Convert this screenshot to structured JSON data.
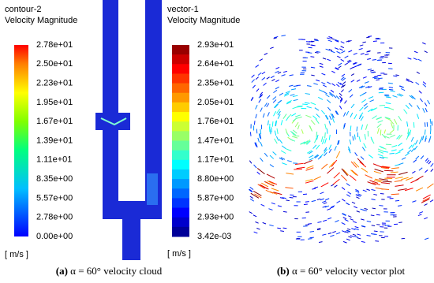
{
  "contour_panel": {
    "title": "contour-2",
    "subtitle": "Velocity Magnitude",
    "ticks": [
      "2.78e+01",
      "2.50e+01",
      "2.23e+01",
      "1.95e+01",
      "1.67e+01",
      "1.39e+01",
      "1.11e+01",
      "8.35e+00",
      "5.57e+00",
      "2.78e+00",
      "0.00e+00"
    ],
    "unit": "[ m/s ]"
  },
  "vector_panel": {
    "title": "vector-1",
    "subtitle": "Velocity Magnitude",
    "ticks": [
      "2.93e+01",
      "2.64e+01",
      "2.35e+01",
      "2.05e+01",
      "1.76e+01",
      "1.47e+01",
      "1.17e+01",
      "8.80e+00",
      "5.87e+00",
      "2.93e+00",
      "3.42e-03"
    ],
    "unit": "[ m/s ]"
  },
  "captions": [
    {
      "label": "(a)",
      "text": "α = 60° velocity cloud"
    },
    {
      "label": "(b)",
      "text": "α = 60° velocity vector plot"
    }
  ]
}
